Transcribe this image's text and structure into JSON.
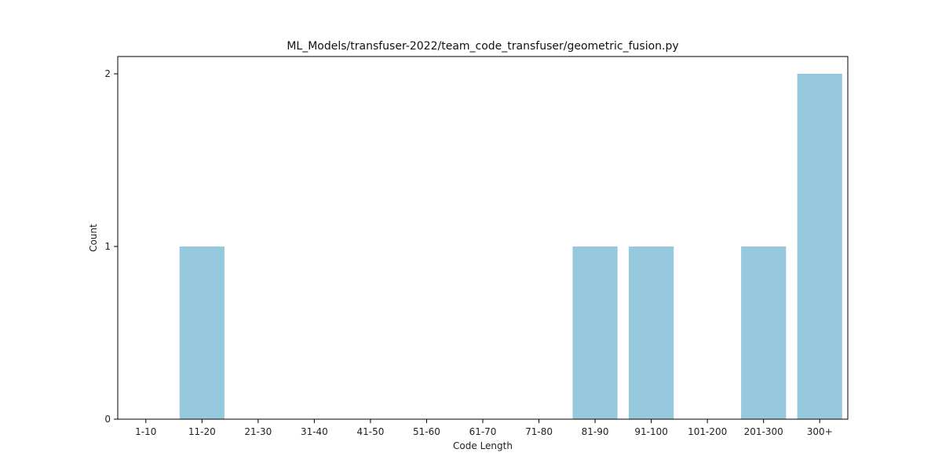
{
  "chart_data": {
    "type": "bar",
    "title": "ML_Models/transfuser-2022/team_code_transfuser/geometric_fusion.py",
    "xlabel": "Code Length",
    "ylabel": "Count",
    "categories": [
      "1-10",
      "11-20",
      "21-30",
      "31-40",
      "41-50",
      "51-60",
      "61-70",
      "71-80",
      "81-90",
      "91-100",
      "101-200",
      "201-300",
      "300+"
    ],
    "values": [
      0,
      1,
      0,
      0,
      0,
      0,
      0,
      0,
      1,
      1,
      0,
      1,
      2
    ],
    "ylim": [
      0,
      2.1
    ],
    "yticks": [
      0,
      1,
      2
    ],
    "grid": false,
    "legend": "none",
    "bar_color": "#96c9dd"
  }
}
